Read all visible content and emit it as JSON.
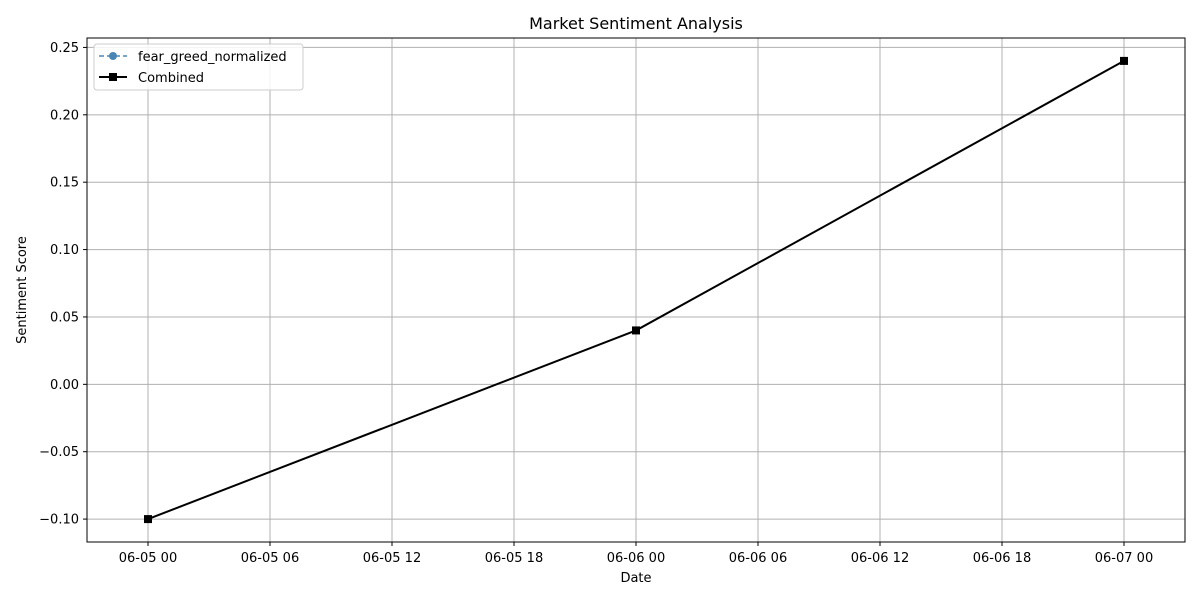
{
  "chart_data": {
    "type": "line",
    "title": "Market Sentiment Analysis",
    "xlabel": "Date",
    "ylabel": "Sentiment Score",
    "x_ticks": [
      "06-05 00",
      "06-05 06",
      "06-05 12",
      "06-05 18",
      "06-06 00",
      "06-06 06",
      "06-06 12",
      "06-06 18",
      "06-07 00"
    ],
    "x_range": [
      "2024-06-04T21:00",
      "2024-06-07T03:00"
    ],
    "y_ticks": [
      "−0.10",
      "−0.05",
      "0.00",
      "0.05",
      "0.10",
      "0.15",
      "0.20",
      "0.25"
    ],
    "ylim": [
      -0.117,
      0.257
    ],
    "grid": true,
    "legend_position": "top-left",
    "series": [
      {
        "name": "fear_greed_normalized",
        "style": "dashed",
        "marker": "circle",
        "color": "#4a86b5",
        "x": [],
        "y": []
      },
      {
        "name": "Combined",
        "style": "solid",
        "marker": "square",
        "color": "#000000",
        "x": [
          "2024-06-05T00:00",
          "2024-06-06T00:00",
          "2024-06-07T00:00"
        ],
        "y": [
          -0.1,
          0.04,
          0.24
        ]
      }
    ]
  }
}
